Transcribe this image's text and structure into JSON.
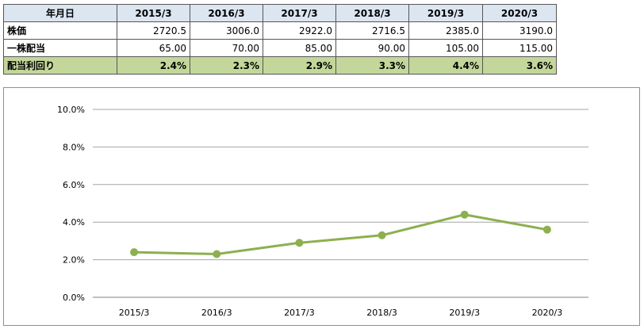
{
  "table": {
    "header_label": "年月日",
    "years": [
      "2015/3",
      "2016/3",
      "2017/3",
      "2018/3",
      "2019/3",
      "2020/3"
    ],
    "rows": [
      {
        "label": "株価",
        "values": [
          "2720.5",
          "3006.0",
          "2922.0",
          "2716.5",
          "2385.0",
          "3190.0"
        ]
      },
      {
        "label": "一株配当",
        "values": [
          "65.00",
          "70.00",
          "85.00",
          "90.00",
          "105.00",
          "115.00"
        ]
      },
      {
        "label": "配当利回り",
        "values": [
          "2.4%",
          "2.3%",
          "2.9%",
          "3.3%",
          "4.4%",
          "3.6%"
        ]
      }
    ]
  },
  "colors": {
    "header_bg": "#dce6f1",
    "yield_row_bg": "#c4d79b",
    "series": "#8cb04f",
    "grid": "#a6a6a6"
  },
  "chart_data": {
    "type": "line",
    "title": "",
    "xlabel": "",
    "ylabel": "",
    "categories": [
      "2015/3",
      "2016/3",
      "2017/3",
      "2018/3",
      "2019/3",
      "2020/3"
    ],
    "series": [
      {
        "values": [
          2.4,
          2.3,
          2.9,
          3.3,
          4.4,
          3.6
        ]
      }
    ],
    "ylim": [
      0,
      10
    ],
    "yticks": [
      "0.0%",
      "2.0%",
      "4.0%",
      "6.0%",
      "8.0%",
      "10.0%"
    ],
    "grid": true,
    "legend": "none"
  }
}
